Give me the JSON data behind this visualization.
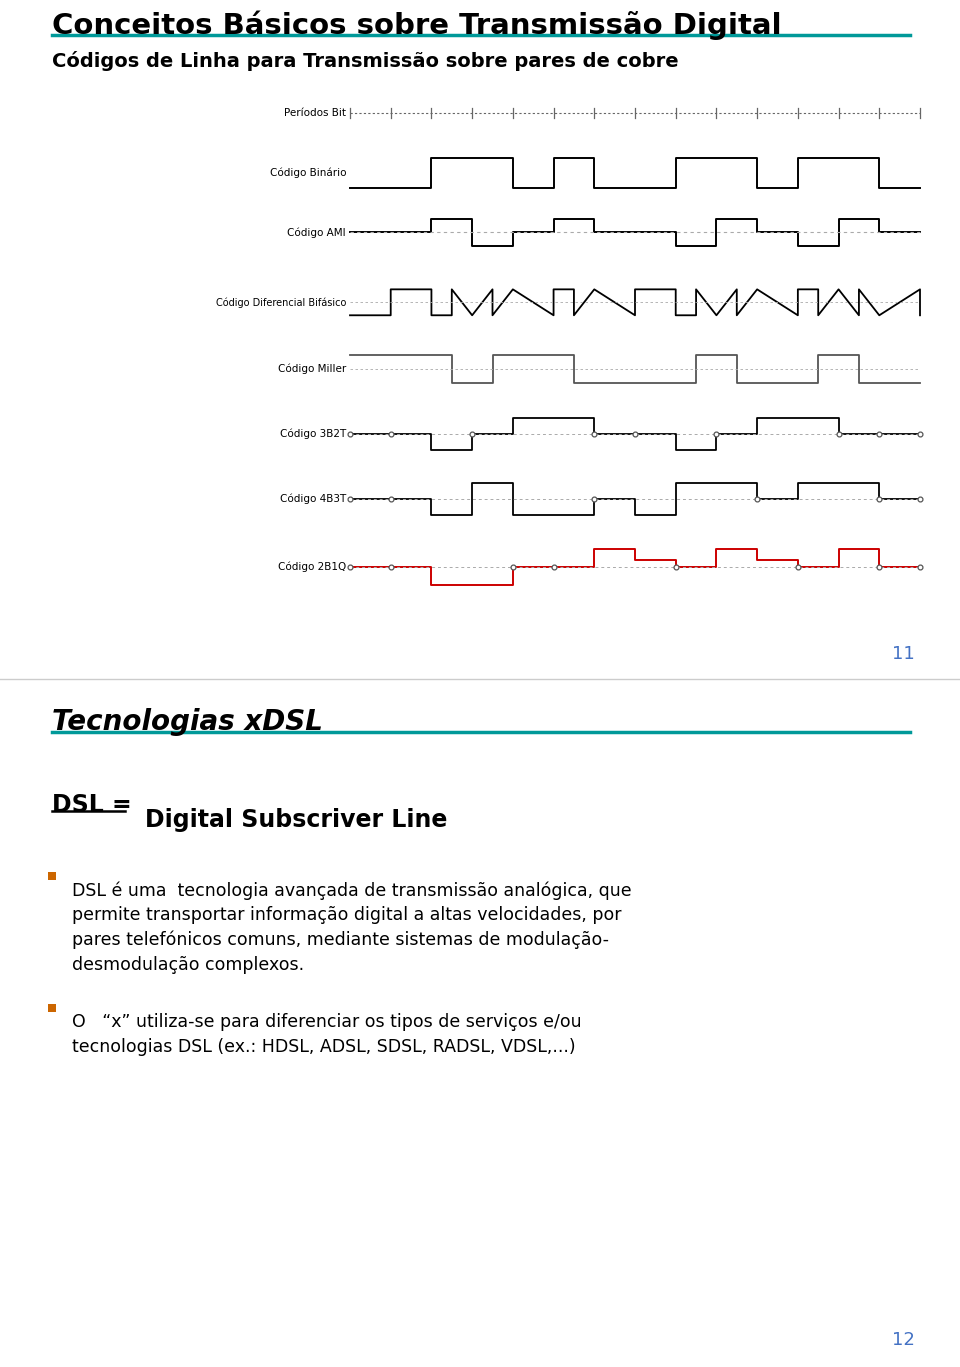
{
  "page1": {
    "title1": "Conceitos Básicos sobre Transmissão Digital",
    "title2": "Códigos de Linha para Transmissão sobre pares de cobre",
    "page_num": "11",
    "bg_color": "#ffffff",
    "title_color": "#000000",
    "teal_line": "#009999",
    "page_num_color": "#4472c4",
    "signal_labels": [
      "Períodos Bit",
      "Código Binário",
      "Código AMI",
      "Código Diferencial Bifásico",
      "Código Miller",
      "Código 3B2T",
      "Código 4B3T",
      "Código 2B1Q"
    ],
    "binary_seq": [
      0,
      0,
      1,
      1,
      0,
      1,
      0,
      0,
      1,
      1,
      0,
      1,
      1,
      0
    ],
    "ami_seq": [
      0,
      0,
      1,
      -1,
      0,
      1,
      0,
      0,
      -1,
      1,
      0,
      -1,
      1,
      0
    ],
    "t3b2t": [
      0,
      0,
      -1,
      0,
      1,
      1,
      0,
      0,
      -1,
      0,
      1,
      1,
      0,
      0
    ],
    "t4b3t": [
      0,
      0,
      -1,
      1,
      -1,
      -1,
      0,
      -1,
      1,
      1,
      0,
      1,
      1,
      0
    ],
    "t2b1q": [
      0,
      0,
      -3,
      -3,
      0,
      0,
      3,
      1,
      0,
      3,
      1,
      0,
      3,
      0
    ]
  },
  "page2": {
    "title": "Tecnologias xDSL",
    "title_color": "#000000",
    "teal_line": "#009999",
    "page_num": "12",
    "page_num_color": "#4472c4",
    "bg_color": "#ffffff",
    "dsl_label": "DSL =",
    "dsl_def": "Digital Subscriver Line",
    "bullet_color": "#cc6600",
    "bullet1": [
      "DSL é uma  tecnologia avançada de transmissão analógica, que",
      "permite transportar informação digital a altas velocidades, por",
      "pares telefónicos comuns, mediante sistemas de modulação-",
      "desmodulação complexos."
    ],
    "bullet2": [
      "O   “x” utiliza-se para diferenciar os tipos de serviços e/ou",
      "tecnologias DSL (ex.: HDSL, ADSL, SDSL, RADSL, VDSL,...)"
    ]
  }
}
